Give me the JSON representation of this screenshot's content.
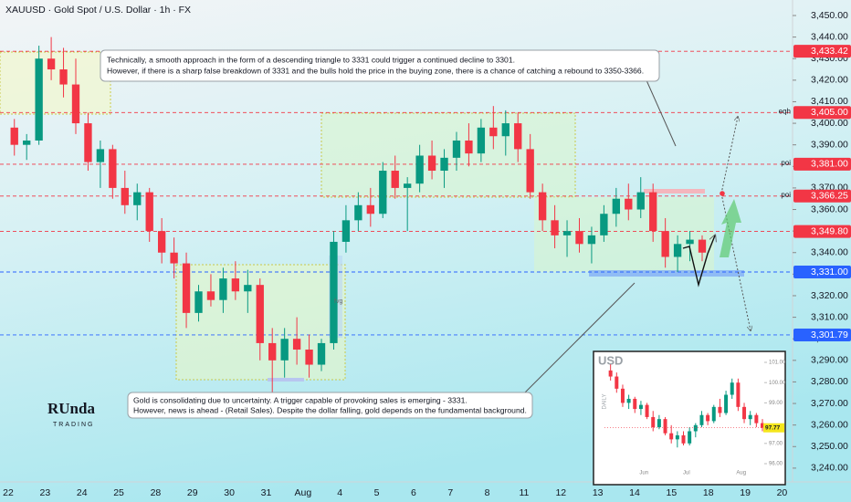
{
  "header": "XAUUSD · Gold Spot / U.S. Dollar · 1h · FX",
  "chart_data": [
    {
      "type": "candlestick",
      "up_color": "#089981",
      "down_color": "#f23645",
      "xlim": [
        -0.67,
        63.86
      ],
      "ylim": [
        3233.6,
        3457.2
      ],
      "grid": false,
      "xticks": [
        {
          "value": 0,
          "label": "22"
        },
        {
          "value": 3,
          "label": "23"
        },
        {
          "value": 6,
          "label": "24"
        },
        {
          "value": 9,
          "label": "25"
        },
        {
          "value": 12,
          "label": "28"
        },
        {
          "value": 15,
          "label": "29"
        },
        {
          "value": 18,
          "label": "30"
        },
        {
          "value": 21,
          "label": "31"
        },
        {
          "value": 24,
          "label": "Aug"
        },
        {
          "value": 27,
          "label": "4"
        },
        {
          "value": 30,
          "label": "5"
        },
        {
          "value": 33,
          "label": "6"
        },
        {
          "value": 36,
          "label": "7"
        },
        {
          "value": 39,
          "label": "8"
        },
        {
          "value": 42,
          "label": "11"
        },
        {
          "value": 45,
          "label": "12"
        },
        {
          "value": 48,
          "label": "13"
        },
        {
          "value": 51,
          "label": "14"
        },
        {
          "value": 54,
          "label": "15"
        },
        {
          "value": 57,
          "label": "18"
        },
        {
          "value": 60,
          "label": "19"
        },
        {
          "value": 63,
          "label": "20"
        }
      ],
      "yticks": [
        {
          "value": 3450,
          "label": "3,450.00"
        },
        {
          "value": 3440,
          "label": "3,440.00"
        },
        {
          "value": 3430,
          "label": "3,430.00"
        },
        {
          "value": 3420,
          "label": "3,420.00"
        },
        {
          "value": 3410,
          "label": "3,410.00"
        },
        {
          "value": 3400,
          "label": "3,400.00"
        },
        {
          "value": 3390,
          "label": "3,390.00"
        },
        {
          "value": 3380,
          "label": "3,380.00"
        },
        {
          "value": 3370,
          "label": "3,370.00"
        },
        {
          "value": 3360,
          "label": "3,360.00"
        },
        {
          "value": 3350,
          "label": "3,350.00"
        },
        {
          "value": 3340,
          "label": "3,340.00"
        },
        {
          "value": 3330,
          "label": "3,330.00"
        },
        {
          "value": 3320,
          "label": "3,320.00"
        },
        {
          "value": 3310,
          "label": "3,310.00"
        },
        {
          "value": 3300,
          "label": "3,300.00"
        },
        {
          "value": 3290,
          "label": "3,290.00"
        },
        {
          "value": 3280,
          "label": "3,280.00"
        },
        {
          "value": 3270,
          "label": "3,270.00"
        },
        {
          "value": 3260,
          "label": "3,260.00"
        },
        {
          "value": 3250,
          "label": "3,250.00"
        },
        {
          "value": 3240,
          "label": "3,240.00"
        }
      ],
      "open": [
        3398,
        3390,
        3392,
        3430,
        3425,
        3418,
        3400,
        3382,
        3388,
        3370,
        3362,
        3368,
        3350,
        3340,
        3335,
        3312,
        3322,
        3318,
        3328,
        3322,
        3325,
        3298,
        3290,
        3300,
        3295,
        3288,
        3298,
        3345,
        3355,
        3362,
        3358,
        3378,
        3370,
        3372,
        3385,
        3378,
        3384,
        3392,
        3386,
        3398,
        3394,
        3400,
        3388,
        3368,
        3355,
        3348,
        3350,
        3344,
        3348,
        3358,
        3365,
        3360,
        3368,
        3350,
        3338,
        3344,
        3346
      ],
      "high": [
        3402,
        3395,
        3436,
        3440,
        3435,
        3430,
        3405,
        3392,
        3390,
        3378,
        3372,
        3370,
        3356,
        3347,
        3340,
        3325,
        3330,
        3333,
        3336,
        3332,
        3328,
        3305,
        3305,
        3310,
        3302,
        3300,
        3350,
        3362,
        3368,
        3370,
        3382,
        3385,
        3375,
        3390,
        3392,
        3388,
        3396,
        3400,
        3402,
        3408,
        3406,
        3405,
        3395,
        3372,
        3362,
        3355,
        3356,
        3352,
        3362,
        3370,
        3372,
        3375,
        3372,
        3356,
        3348,
        3350,
        3348
      ],
      "low": [
        3385,
        3383,
        3390,
        3420,
        3412,
        3395,
        3378,
        3370,
        3365,
        3358,
        3355,
        3345,
        3335,
        3328,
        3305,
        3308,
        3315,
        3312,
        3318,
        3312,
        3290,
        3270,
        3282,
        3288,
        3282,
        3285,
        3295,
        3340,
        3350,
        3352,
        3356,
        3365,
        3350,
        3368,
        3374,
        3370,
        3378,
        3380,
        3382,
        3388,
        3385,
        3382,
        3365,
        3350,
        3342,
        3338,
        3340,
        3335,
        3345,
        3352,
        3355,
        3356,
        3345,
        3333,
        3331,
        3336,
        3336
      ],
      "close": [
        3390,
        3392,
        3430,
        3425,
        3418,
        3400,
        3382,
        3388,
        3370,
        3362,
        3368,
        3350,
        3340,
        3335,
        3312,
        3322,
        3318,
        3328,
        3322,
        3325,
        3298,
        3290,
        3300,
        3295,
        3288,
        3298,
        3345,
        3355,
        3362,
        3358,
        3378,
        3370,
        3372,
        3385,
        3378,
        3384,
        3392,
        3386,
        3398,
        3394,
        3400,
        3388,
        3368,
        3355,
        3348,
        3350,
        3344,
        3348,
        3358,
        3365,
        3360,
        3368,
        3350,
        3338,
        3344,
        3346,
        3340
      ],
      "levels": [
        {
          "value": 3433.42,
          "label": "3,433.42",
          "color": "#f23645"
        },
        {
          "value": 3405,
          "label": "3,405.00",
          "color": "#f23645",
          "note": "eqh"
        },
        {
          "value": 3381,
          "label": "3,381.00",
          "color": "#f23645",
          "note": "poi"
        },
        {
          "value": 3366.25,
          "label": "3,366.25",
          "color": "#f23645",
          "note": "poi"
        },
        {
          "value": 3349.8,
          "label": "3,349.80",
          "color": "#f23645"
        },
        {
          "value": 3331,
          "label": "3,331.00",
          "color": "#2962ff"
        },
        {
          "value": 3301.79,
          "label": "3,301.79",
          "color": "#2962ff"
        }
      ],
      "zone_label": "fvg",
      "annotations": [
        [
          "Technically, a smooth approach in the form of a descending triangle to 3331 could trigger a continued decline to 3301.",
          "However, if there is a sharp false breakdown of 3331 and the bulls hold the price in the buying zone, there is a chance of catching a rebound to 3350-3366."
        ],
        [
          "Gold is consolidating due to uncertainty. A trigger capable of provoking sales is emerging - 3331.",
          "However, news is ahead - (Retail Sales). Despite the dollar falling, gold depends on the fundamental background."
        ]
      ],
      "logo": [
        "RUnda",
        "TRADING"
      ]
    },
    {
      "type": "candlestick",
      "title": "USD",
      "subtitle": "DAILY",
      "up_color": "#089981",
      "down_color": "#f23645",
      "xlim": [
        -0.5,
        25.5
      ],
      "ylim": [
        96,
        101
      ],
      "xticks": [
        {
          "value": 6,
          "label": "Jun"
        },
        {
          "value": 13,
          "label": "Jul"
        },
        {
          "value": 22,
          "label": "Aug"
        }
      ],
      "yticks": [
        {
          "value": 101,
          "label": "101.00"
        },
        {
          "value": 100,
          "label": "100.00"
        },
        {
          "value": 99,
          "label": "99.00"
        },
        {
          "value": 97,
          "label": "97.00"
        },
        {
          "value": 96,
          "label": "96.00"
        }
      ],
      "open": [
        100.6,
        100.3,
        99.7,
        99.0,
        99.2,
        98.7,
        98.9,
        98.3,
        97.8,
        98.2,
        97.5,
        97.2,
        97.4,
        97.0,
        97.6,
        97.9,
        98.4,
        98.1,
        98.8,
        98.5,
        99.4,
        100.0,
        98.8,
        98.2,
        98.4,
        98.0
      ],
      "high": [
        100.9,
        100.5,
        99.9,
        99.4,
        99.3,
        99.1,
        99.0,
        98.6,
        98.4,
        98.3,
        97.9,
        97.6,
        97.6,
        97.8,
        98.0,
        98.6,
        98.5,
        98.9,
        99.2,
        99.6,
        100.2,
        100.2,
        99.0,
        98.6,
        98.5,
        98.2
      ],
      "low": [
        100.1,
        99.5,
        98.8,
        98.7,
        98.5,
        98.4,
        98.2,
        97.6,
        97.7,
        97.4,
        97.0,
        96.8,
        96.9,
        96.9,
        97.3,
        97.8,
        97.9,
        98.0,
        98.3,
        98.4,
        99.2,
        98.6,
        98.0,
        97.9,
        97.8,
        97.6
      ],
      "close": [
        100.3,
        99.7,
        99.0,
        99.2,
        98.7,
        98.9,
        98.3,
        97.8,
        98.2,
        97.5,
        97.2,
        97.4,
        97.0,
        97.6,
        97.9,
        98.4,
        98.1,
        98.8,
        98.5,
        99.4,
        100.0,
        98.8,
        98.2,
        98.4,
        98.0,
        97.77
      ],
      "price_tag": "97.77"
    }
  ]
}
